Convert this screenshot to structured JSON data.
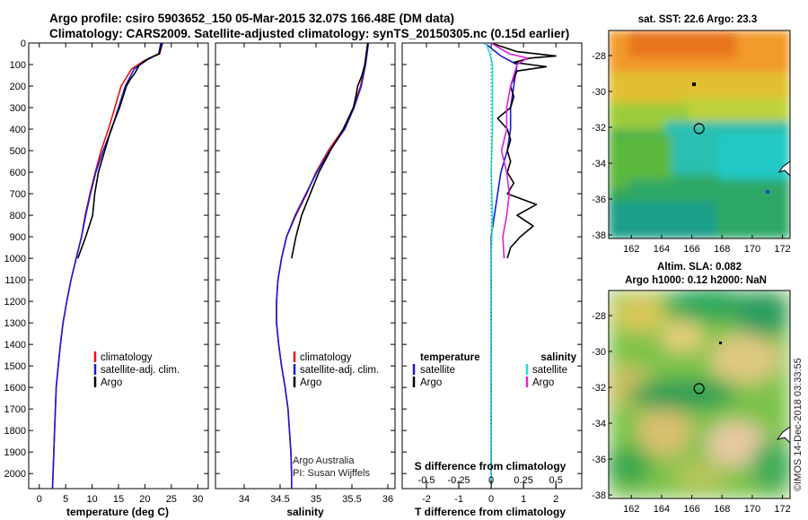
{
  "header": {
    "line1": "Argo profile: csiro 5903652_150 05-Mar-2015 32.07S 166.48E (DM data)",
    "line2": "Climatology: CARS2009. Satellite-adjusted climatology: synTS_20150305.nc (0.15d earlier)"
  },
  "colors": {
    "climatology": "#ee1111",
    "satellite": "#1a1ad6",
    "argo": "#000000",
    "satellite_salinity": "#22dddd",
    "argo_salinity": "#dd22dd"
  },
  "credits": {
    "line1": "Argo Australia",
    "line2": "PI: Susan Wijffels",
    "imos": "©IMOS 14-Dec-2018 03:33:55"
  },
  "legends": {
    "climatology": "climatology",
    "satellite_adj": "satellite-adj. clim.",
    "argo": "Argo",
    "temperature_head": "temperature",
    "salinity_head": "salinity",
    "satellite": "satellite"
  },
  "chart_data": [
    {
      "type": "line",
      "title": "",
      "xlabel": "temperature (deg C)",
      "ylabel": "",
      "xlim": [
        -2,
        32
      ],
      "ylim": [
        2070,
        0
      ],
      "xticks": [
        0,
        5,
        10,
        15,
        20,
        25,
        30
      ],
      "xticklabels": [
        "0",
        "5",
        "10",
        "15",
        "20",
        "25",
        "30"
      ],
      "yticks": [
        0,
        100,
        200,
        300,
        400,
        500,
        600,
        700,
        800,
        900,
        1000,
        1100,
        1200,
        1300,
        1400,
        1500,
        1600,
        1700,
        1800,
        1900,
        2000
      ],
      "series": [
        {
          "name": "climatology",
          "color": "#ee1111",
          "points": [
            [
              23.3,
              0
            ],
            [
              22.8,
              50
            ],
            [
              20,
              80
            ],
            [
              17.5,
              120
            ],
            [
              15.5,
              200
            ],
            [
              14.3,
              300
            ],
            [
              13.1,
              400
            ],
            [
              11.7,
              500
            ],
            [
              10.6,
              600
            ],
            [
              9.6,
              700
            ],
            [
              8.7,
              800
            ],
            [
              8.0,
              900
            ],
            [
              7.0,
              1000
            ],
            [
              6.0,
              1100
            ],
            [
              5.2,
              1200
            ],
            [
              4.5,
              1300
            ],
            [
              4.0,
              1400
            ],
            [
              3.6,
              1500
            ],
            [
              3.2,
              1600
            ],
            [
              2.9,
              1800
            ],
            [
              2.6,
              2000
            ],
            [
              2.5,
              2070
            ]
          ]
        },
        {
          "name": "satellite-adj. clim.",
          "color": "#1a1ad6",
          "points": [
            [
              23.0,
              0
            ],
            [
              22.6,
              50
            ],
            [
              20.3,
              80
            ],
            [
              18.0,
              120
            ],
            [
              16.3,
              200
            ],
            [
              15.0,
              300
            ],
            [
              13.7,
              400
            ],
            [
              12.1,
              500
            ],
            [
              10.7,
              600
            ],
            [
              9.7,
              700
            ],
            [
              8.8,
              800
            ],
            [
              8.0,
              900
            ],
            [
              7.0,
              1000
            ],
            [
              6.0,
              1100
            ],
            [
              5.2,
              1200
            ],
            [
              4.5,
              1300
            ],
            [
              4.0,
              1400
            ],
            [
              3.6,
              1500
            ],
            [
              3.2,
              1600
            ],
            [
              2.9,
              1800
            ],
            [
              2.6,
              2000
            ],
            [
              2.5,
              2070
            ]
          ]
        },
        {
          "name": "Argo",
          "color": "#000000",
          "points": [
            [
              23.3,
              0
            ],
            [
              22.7,
              50
            ],
            [
              20.8,
              70
            ],
            [
              19.0,
              100
            ],
            [
              18.1,
              140
            ],
            [
              17.8,
              150
            ],
            [
              17.2,
              170
            ],
            [
              16.5,
              200
            ],
            [
              15.2,
              300
            ],
            [
              13.6,
              400
            ],
            [
              12.4,
              500
            ],
            [
              11.2,
              600
            ],
            [
              10.5,
              700
            ],
            [
              10.1,
              800
            ],
            [
              8.8,
              900
            ],
            [
              7.3,
              1000
            ]
          ]
        }
      ]
    },
    {
      "type": "line",
      "title": "",
      "xlabel": "salinity",
      "ylabel": "",
      "xlim": [
        33.6,
        36.1
      ],
      "ylim": [
        2070,
        0
      ],
      "xticks": [
        34,
        34.5,
        35,
        35.5,
        36
      ],
      "xticklabels": [
        "34",
        "34.5",
        "35",
        "35.5",
        "36"
      ],
      "series": [
        {
          "name": "climatology",
          "color": "#ee1111",
          "points": [
            [
              35.72,
              0
            ],
            [
              35.68,
              100
            ],
            [
              35.62,
              200
            ],
            [
              35.52,
              300
            ],
            [
              35.38,
              400
            ],
            [
              35.17,
              500
            ],
            [
              35.0,
              600
            ],
            [
              34.87,
              700
            ],
            [
              34.72,
              800
            ],
            [
              34.59,
              900
            ],
            [
              34.52,
              1000
            ],
            [
              34.47,
              1100
            ],
            [
              34.45,
              1200
            ],
            [
              34.45,
              1300
            ],
            [
              34.48,
              1400
            ],
            [
              34.52,
              1500
            ],
            [
              34.57,
              1600
            ],
            [
              34.61,
              1700
            ],
            [
              34.63,
              1800
            ],
            [
              34.65,
              1900
            ],
            [
              34.66,
              2000
            ],
            [
              34.66,
              2070
            ]
          ]
        },
        {
          "name": "satellite-adj. clim.",
          "color": "#1a1ad6",
          "points": [
            [
              35.73,
              0
            ],
            [
              35.69,
              100
            ],
            [
              35.63,
              200
            ],
            [
              35.53,
              300
            ],
            [
              35.4,
              400
            ],
            [
              35.19,
              500
            ],
            [
              35.01,
              600
            ],
            [
              34.86,
              700
            ],
            [
              34.71,
              800
            ],
            [
              34.59,
              900
            ],
            [
              34.52,
              1000
            ],
            [
              34.47,
              1100
            ],
            [
              34.45,
              1200
            ],
            [
              34.45,
              1300
            ],
            [
              34.48,
              1400
            ],
            [
              34.52,
              1500
            ],
            [
              34.57,
              1600
            ],
            [
              34.61,
              1700
            ],
            [
              34.63,
              1800
            ],
            [
              34.65,
              1900
            ],
            [
              34.66,
              2000
            ],
            [
              34.66,
              2070
            ]
          ]
        },
        {
          "name": "Argo",
          "color": "#000000",
          "points": [
            [
              35.72,
              0
            ],
            [
              35.7,
              50
            ],
            [
              35.68,
              100
            ],
            [
              35.64,
              150
            ],
            [
              35.58,
              200
            ],
            [
              35.56,
              240
            ],
            [
              35.52,
              300
            ],
            [
              35.38,
              400
            ],
            [
              35.2,
              500
            ],
            [
              35.04,
              600
            ],
            [
              34.92,
              700
            ],
            [
              34.8,
              800
            ],
            [
              34.72,
              900
            ],
            [
              34.66,
              1000
            ]
          ]
        }
      ]
    },
    {
      "type": "line",
      "title": "S difference from climatology",
      "xlabel": "T difference from climatology",
      "ylabel": "",
      "xlim": [
        -2.75,
        2.8
      ],
      "ylim": [
        2070,
        0
      ],
      "xticks": [
        -2,
        -1,
        0,
        1,
        2
      ],
      "xticklabels": [
        "-2",
        "-1",
        "0",
        "1",
        "2"
      ],
      "secondary_xticks": [
        -0.5,
        -0.25,
        0,
        0.25,
        0.5
      ],
      "secondary_xticklabels": [
        "-0.5",
        "-0.25",
        "0",
        "0.25",
        "0.5"
      ],
      "legend": [
        {
          "group": "temperature",
          "entries": [
            "satellite",
            "Argo"
          ]
        },
        {
          "group": "salinity",
          "entries": [
            "satellite",
            "Argo"
          ]
        }
      ],
      "series": [
        {
          "name": "temperature satellite",
          "color": "#1a1ad6",
          "points": [
            [
              -0.2,
              0
            ],
            [
              0.3,
              60
            ],
            [
              0.8,
              100
            ],
            [
              0.7,
              200
            ],
            [
              0.6,
              300
            ],
            [
              0.6,
              400
            ],
            [
              0.5,
              500
            ],
            [
              0.3,
              600
            ],
            [
              0.2,
              700
            ],
            [
              0.1,
              800
            ],
            [
              0.0,
              900
            ],
            [
              0.0,
              1000
            ],
            [
              0.0,
              2050
            ]
          ]
        },
        {
          "name": "temperature Argo",
          "color": "#000000",
          "points": [
            [
              0.0,
              0
            ],
            [
              0.8,
              40
            ],
            [
              2.0,
              60
            ],
            [
              1.2,
              70
            ],
            [
              0.7,
              90
            ],
            [
              1.2,
              100
            ],
            [
              1.7,
              110
            ],
            [
              0.8,
              130
            ],
            [
              0.6,
              200
            ],
            [
              0.7,
              250
            ],
            [
              0.6,
              300
            ],
            [
              0.2,
              350
            ],
            [
              0.5,
              400
            ],
            [
              0.6,
              450
            ],
            [
              0.5,
              500
            ],
            [
              0.6,
              550
            ],
            [
              0.5,
              600
            ],
            [
              0.7,
              650
            ],
            [
              0.5,
              700
            ],
            [
              1.4,
              750
            ],
            [
              0.8,
              800
            ],
            [
              1.3,
              850
            ],
            [
              0.9,
              900
            ],
            [
              0.6,
              950
            ],
            [
              0.5,
              1000
            ]
          ]
        },
        {
          "name": "salinity satellite",
          "color": "#22dddd",
          "points": [
            [
              -0.04,
              0
            ],
            [
              -0.01,
              50
            ],
            [
              0.01,
              100
            ],
            [
              0.01,
              200
            ],
            [
              0.01,
              400
            ],
            [
              0.0,
              600
            ],
            [
              0.01,
              800
            ],
            [
              0.0,
              1000
            ],
            [
              0.0,
              2050
            ]
          ]
        },
        {
          "name": "salinity Argo",
          "color": "#dd22dd",
          "points": [
            [
              0.0,
              0
            ],
            [
              0.14,
              50
            ],
            [
              0.28,
              70
            ],
            [
              0.2,
              100
            ],
            [
              0.15,
              200
            ],
            [
              0.12,
              300
            ],
            [
              0.12,
              400
            ],
            [
              0.08,
              500
            ],
            [
              0.12,
              600
            ],
            [
              0.14,
              700
            ],
            [
              0.12,
              800
            ],
            [
              0.09,
              900
            ],
            [
              0.1,
              1000
            ]
          ]
        }
      ]
    },
    {
      "type": "heatmap",
      "title": "sat. SST: 22.6 Argo: 23.3",
      "xticks": [
        162,
        164,
        166,
        168,
        170,
        172
      ],
      "yticks": [
        -28,
        -30,
        -32,
        -34,
        -36,
        -38
      ],
      "xlim": [
        160.5,
        172.5
      ],
      "ylim": [
        -38.2,
        -26.6
      ],
      "profile_position": [
        166.48,
        -32.07
      ]
    },
    {
      "type": "heatmap",
      "title": "Altim. SLA: 0.082",
      "subtitle": "Argo h1000: 0.12 h2000: NaN",
      "xticks": [
        162,
        164,
        166,
        168,
        170,
        172
      ],
      "yticks": [
        -28,
        -30,
        -32,
        -34,
        -36,
        -38
      ],
      "xlim": [
        160.5,
        172.5
      ],
      "ylim": [
        -38.2,
        -26.6
      ],
      "profile_position": [
        166.48,
        -32.07
      ]
    }
  ]
}
